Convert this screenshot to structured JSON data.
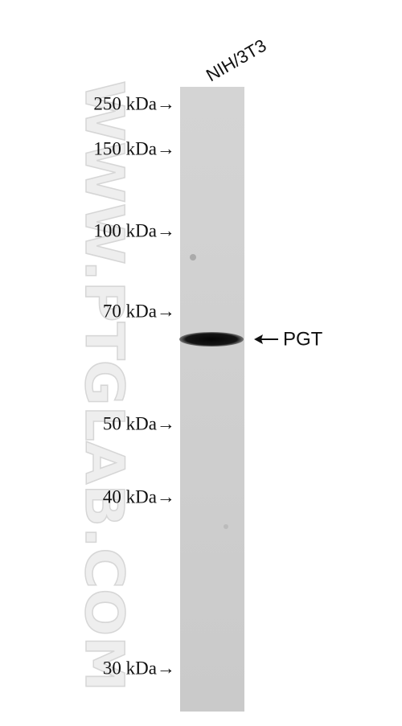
{
  "lane_label": "NIH/3T3",
  "markers": [
    "250 kDa→",
    "150 kDa→",
    "100 kDa→",
    "70 kDa→",
    "50 kDa→",
    "40 kDa→",
    "30 kDa→"
  ],
  "band_label": "PGT",
  "watermark": "WWW.PTGLAB.COM"
}
